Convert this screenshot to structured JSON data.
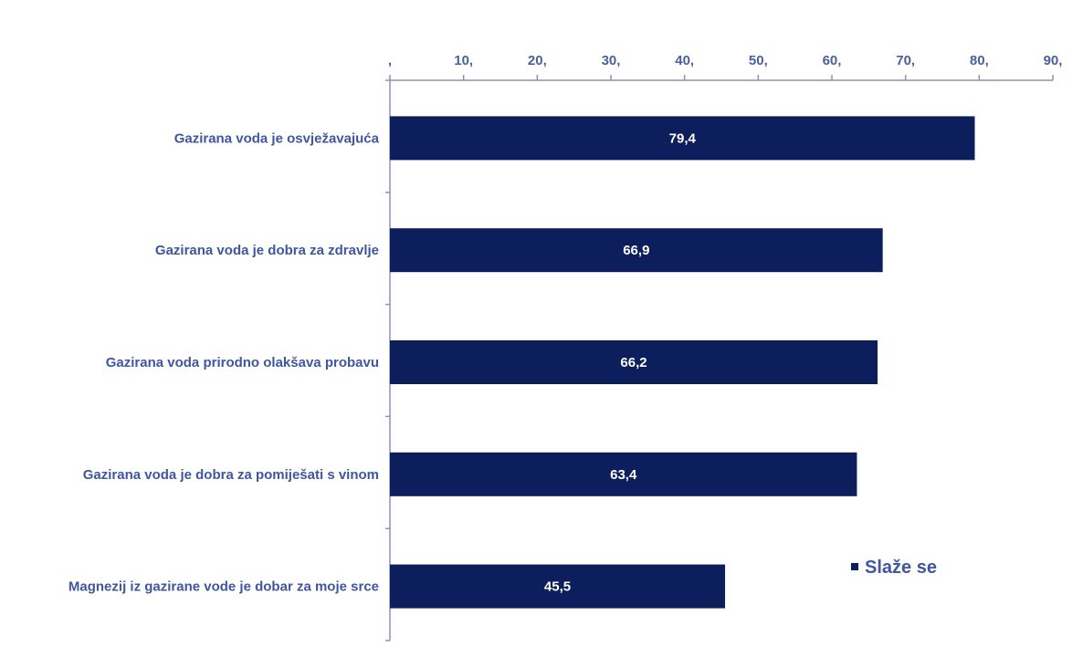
{
  "chart_data": {
    "type": "bar",
    "orientation": "horizontal",
    "categories": [
      "Gazirana voda je osvježavajuća",
      "Gazirana voda je dobra za zdravlje",
      "Gazirana voda prirodno olakšava probavu",
      "Gazirana voda je dobra za pomiješati s vinom",
      "Magnezij iz gazirane vode je dobar za moje srce"
    ],
    "series": [
      {
        "name": "Slaže se",
        "values": [
          79.4,
          66.9,
          66.2,
          63.4,
          45.5
        ],
        "value_labels": [
          "79,4",
          "66,9",
          "66,2",
          "63,4",
          "45,5"
        ],
        "color": "#0c1f5c"
      }
    ],
    "x_ticks": [
      0,
      10,
      20,
      30,
      40,
      50,
      60,
      70,
      80,
      90
    ],
    "x_tick_labels": [
      ",",
      "10,",
      "20,",
      "30,",
      "40,",
      "50,",
      "60,",
      "70,",
      "80,",
      "90,"
    ],
    "xlim": [
      0,
      90
    ],
    "x_axis_position": "top",
    "grid": false,
    "legend_position": "bottom-right",
    "title": "",
    "xlabel": "",
    "ylabel": ""
  },
  "colors": {
    "bar": "#0c1f5c",
    "text": "#3f56a0",
    "axis": "#8a93b8"
  }
}
